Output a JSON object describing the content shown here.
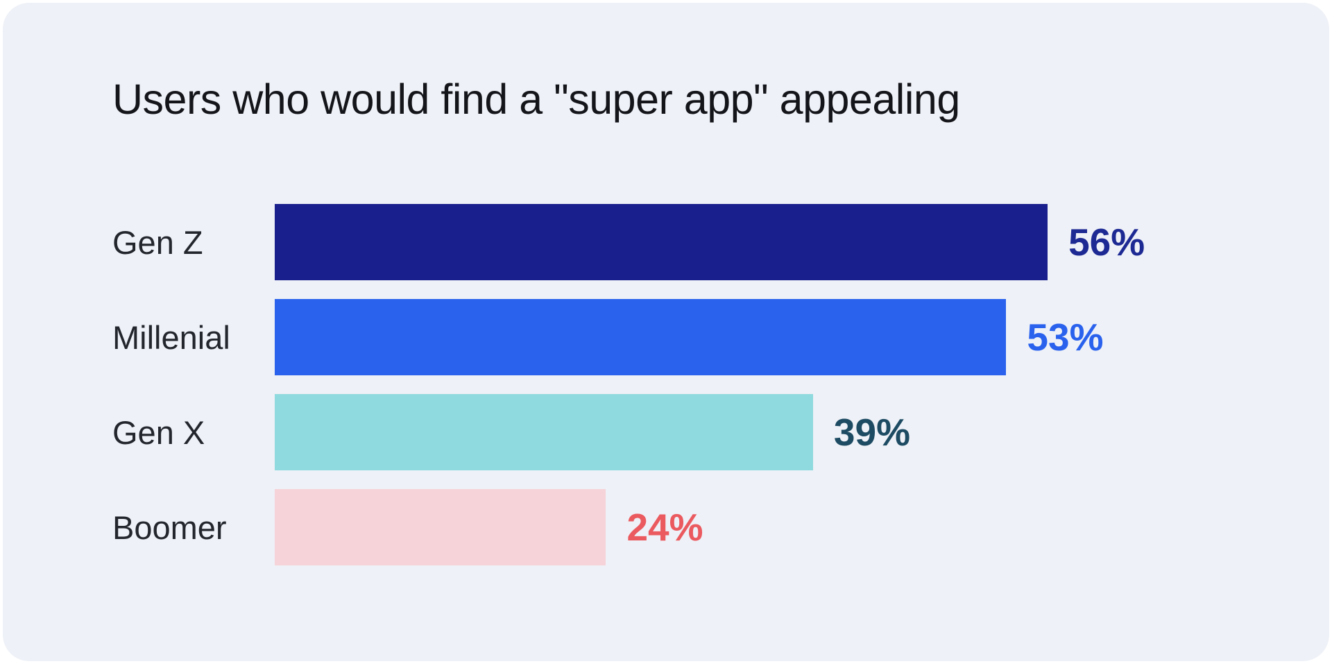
{
  "page": {
    "background": "#ffffff",
    "card_background": "#eef1f7",
    "title_color": "#14151b",
    "category_label_color": "#23262d"
  },
  "chart_data": {
    "type": "bar",
    "orientation": "horizontal",
    "title": "Users who would find a \"super app\" appealing",
    "categories": [
      "Gen Z",
      "Millenial",
      "Gen X",
      "Boomer"
    ],
    "values": [
      56,
      53,
      39,
      24
    ],
    "value_labels": [
      "56%",
      "53%",
      "39%",
      "24%"
    ],
    "bar_colors": [
      "#191f8c",
      "#2a62ee",
      "#8edade",
      "#f5d3d8"
    ],
    "value_label_colors": [
      "#1d2a94",
      "#2a62ee",
      "#1d4b63",
      "#ea5a5f"
    ],
    "xlim": [
      0,
      76
    ],
    "grid": false,
    "legend": false,
    "xlabel": "",
    "ylabel": ""
  }
}
